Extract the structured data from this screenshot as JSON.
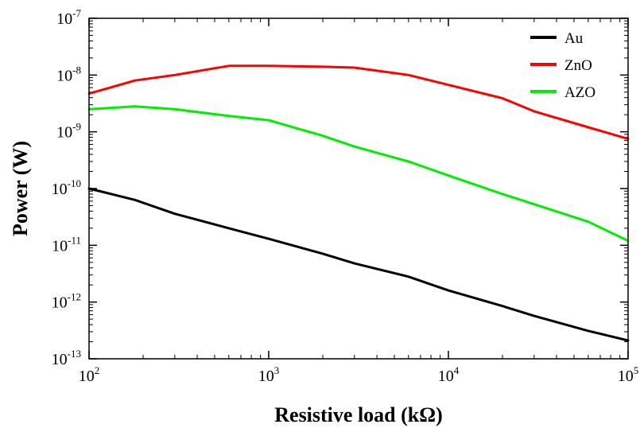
{
  "chart_data": {
    "type": "line",
    "xlabel": "Resistive load (kΩ)",
    "ylabel": "Power (W)",
    "xscale": "log",
    "yscale": "log",
    "xlim": [
      100,
      100000
    ],
    "ylim": [
      1e-13,
      1e-07
    ],
    "x_ticks": [
      {
        "base": "10",
        "exp": "2",
        "value": 100
      },
      {
        "base": "10",
        "exp": "3",
        "value": 1000
      },
      {
        "base": "10",
        "exp": "4",
        "value": 10000
      },
      {
        "base": "10",
        "exp": "5",
        "value": 100000
      }
    ],
    "y_ticks": [
      {
        "base": "10",
        "exp": "-7",
        "value": 1e-07
      },
      {
        "base": "10",
        "exp": "-8",
        "value": 1e-08
      },
      {
        "base": "10",
        "exp": "-9",
        "value": 1e-09
      },
      {
        "base": "10",
        "exp": "-10",
        "value": 1e-10
      },
      {
        "base": "10",
        "exp": "-11",
        "value": 1e-11
      },
      {
        "base": "10",
        "exp": "-12",
        "value": 1e-12
      },
      {
        "base": "10",
        "exp": "-13",
        "value": 1e-13
      }
    ],
    "grid": false,
    "legend_position": "top-right",
    "series": [
      {
        "name": "Au",
        "color": "#000000",
        "x": [
          100,
          180,
          300,
          600,
          1000,
          2000,
          3000,
          6000,
          10000,
          20000,
          30000,
          60000,
          100000
        ],
        "y": [
          1e-10,
          6.3e-11,
          3.6e-11,
          2e-11,
          1.3e-11,
          7.1e-12,
          4.8e-12,
          2.8e-12,
          1.6e-12,
          8.5e-13,
          5.7e-13,
          3.1e-13,
          2.1e-13
        ]
      },
      {
        "name": "ZnO",
        "color": "#ff0000",
        "x": [
          100,
          180,
          300,
          600,
          1000,
          2000,
          3000,
          6000,
          10000,
          20000,
          30000,
          60000,
          100000
        ],
        "y": [
          4.7e-09,
          8e-09,
          1e-08,
          1.45e-08,
          1.45e-08,
          1.4e-08,
          1.35e-08,
          1e-08,
          6.7e-09,
          3.9e-09,
          2.3e-09,
          1.2e-09,
          7.5e-10
        ]
      },
      {
        "name": "AZO",
        "color": "#00ee00",
        "x": [
          100,
          180,
          300,
          600,
          1000,
          2000,
          3000,
          6000,
          10000,
          20000,
          30000,
          60000,
          100000
        ],
        "y": [
          2.5e-09,
          2.8e-09,
          2.5e-09,
          1.9e-09,
          1.6e-09,
          8.5e-10,
          5.5e-10,
          3e-10,
          1.7e-10,
          8e-11,
          5.3e-11,
          2.6e-11,
          1.2e-11
        ]
      }
    ]
  }
}
